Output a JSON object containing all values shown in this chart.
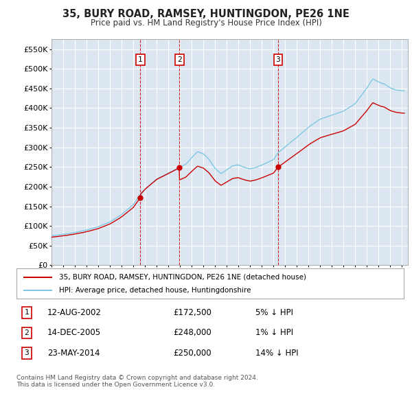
{
  "title": "35, BURY ROAD, RAMSEY, HUNTINGDON, PE26 1NE",
  "subtitle": "Price paid vs. HM Land Registry's House Price Index (HPI)",
  "ylim": [
    0,
    575000
  ],
  "yticks": [
    0,
    50000,
    100000,
    150000,
    200000,
    250000,
    300000,
    350000,
    400000,
    450000,
    500000,
    550000
  ],
  "ytick_labels": [
    "£0",
    "£50K",
    "£100K",
    "£150K",
    "£200K",
    "£250K",
    "£300K",
    "£350K",
    "£400K",
    "£450K",
    "£500K",
    "£550K"
  ],
  "background_color": "#ffffff",
  "plot_bg_color": "#dce6f1",
  "grid_color": "#ffffff",
  "hpi_color": "#7ec8e3",
  "sale_color": "#cc0000",
  "vline_color": "#cc0000",
  "transactions": [
    {
      "date_num": 2002.61,
      "price": 172500,
      "label": "1"
    },
    {
      "date_num": 2005.96,
      "price": 248000,
      "label": "2"
    },
    {
      "date_num": 2014.39,
      "price": 250000,
      "label": "3"
    }
  ],
  "table_rows": [
    {
      "num": "1",
      "date": "12-AUG-2002",
      "price": "£172,500",
      "pct": "5% ↓ HPI"
    },
    {
      "num": "2",
      "date": "14-DEC-2005",
      "price": "£248,000",
      "pct": "1% ↓ HPI"
    },
    {
      "num": "3",
      "date": "23-MAY-2014",
      "price": "£250,000",
      "pct": "14% ↓ HPI"
    }
  ],
  "legend_entries": [
    "35, BURY ROAD, RAMSEY, HUNTINGDON, PE26 1NE (detached house)",
    "HPI: Average price, detached house, Huntingdonshire"
  ],
  "footer": "Contains HM Land Registry data © Crown copyright and database right 2024.\nThis data is licensed under the Open Government Licence v3.0.",
  "hpi_keypoints": [
    [
      1995.0,
      75000
    ],
    [
      1996.0,
      79000
    ],
    [
      1997.0,
      84000
    ],
    [
      1998.0,
      90000
    ],
    [
      1999.0,
      98000
    ],
    [
      2000.0,
      110000
    ],
    [
      2001.0,
      130000
    ],
    [
      2002.0,
      155000
    ],
    [
      2002.61,
      182000
    ],
    [
      2003.0,
      195000
    ],
    [
      2004.0,
      220000
    ],
    [
      2005.0,
      235000
    ],
    [
      2005.96,
      250000
    ],
    [
      2006.5,
      258000
    ],
    [
      2007.0,
      275000
    ],
    [
      2007.5,
      290000
    ],
    [
      2008.0,
      285000
    ],
    [
      2008.5,
      270000
    ],
    [
      2009.0,
      248000
    ],
    [
      2009.5,
      235000
    ],
    [
      2010.0,
      245000
    ],
    [
      2010.5,
      255000
    ],
    [
      2011.0,
      258000
    ],
    [
      2011.5,
      252000
    ],
    [
      2012.0,
      248000
    ],
    [
      2012.5,
      252000
    ],
    [
      2013.0,
      258000
    ],
    [
      2013.5,
      265000
    ],
    [
      2014.0,
      272000
    ],
    [
      2014.39,
      290000
    ],
    [
      2015.0,
      305000
    ],
    [
      2016.0,
      330000
    ],
    [
      2017.0,
      355000
    ],
    [
      2018.0,
      375000
    ],
    [
      2019.0,
      385000
    ],
    [
      2020.0,
      395000
    ],
    [
      2021.0,
      415000
    ],
    [
      2021.5,
      435000
    ],
    [
      2022.0,
      455000
    ],
    [
      2022.5,
      478000
    ],
    [
      2023.0,
      470000
    ],
    [
      2023.5,
      465000
    ],
    [
      2024.0,
      455000
    ],
    [
      2024.5,
      450000
    ],
    [
      2025.0,
      448000
    ]
  ]
}
